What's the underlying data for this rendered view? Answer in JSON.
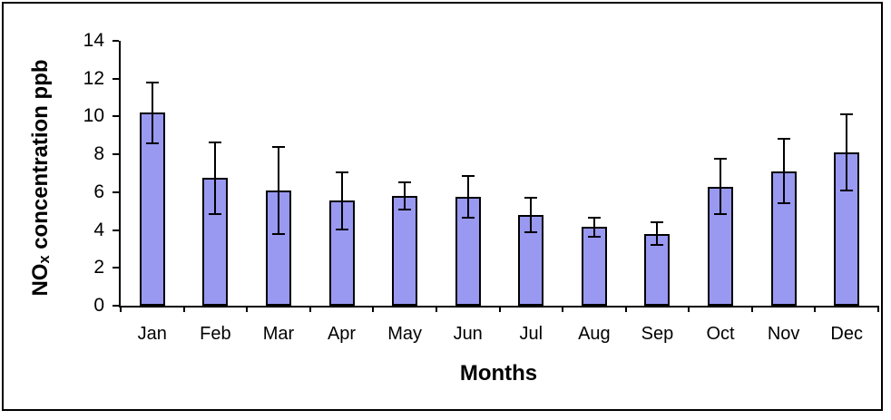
{
  "chart_data": {
    "type": "bar",
    "title": "",
    "xlabel": "Months",
    "ylabel": "NOx concentration ppb",
    "ylabel_parts": {
      "prefix": "NO",
      "subscript": "x",
      "suffix": " concentration ppb"
    },
    "categories": [
      "Jan",
      "Feb",
      "Mar",
      "Apr",
      "May",
      "Jun",
      "Jul",
      "Aug",
      "Sep",
      "Oct",
      "Nov",
      "Dec"
    ],
    "series": [
      {
        "name": "NOx concentration ppb",
        "values": [
          10.2,
          6.75,
          6.1,
          5.55,
          5.8,
          5.75,
          4.8,
          4.15,
          3.8,
          6.3,
          7.1,
          8.1
        ],
        "errors": [
          1.6,
          1.9,
          2.3,
          1.5,
          0.7,
          1.1,
          0.9,
          0.5,
          0.6,
          1.45,
          1.7,
          2.0
        ]
      }
    ],
    "ylim": [
      0,
      14
    ],
    "yticks": [
      0,
      2,
      4,
      6,
      8,
      10,
      12,
      14
    ],
    "grid": false,
    "legend": "none",
    "bar_color": "#9999F2",
    "bar_border_color": "#000000",
    "axis_color": "#000000",
    "frame_border_color": "#000000",
    "background_color": "#FFFFFF"
  }
}
